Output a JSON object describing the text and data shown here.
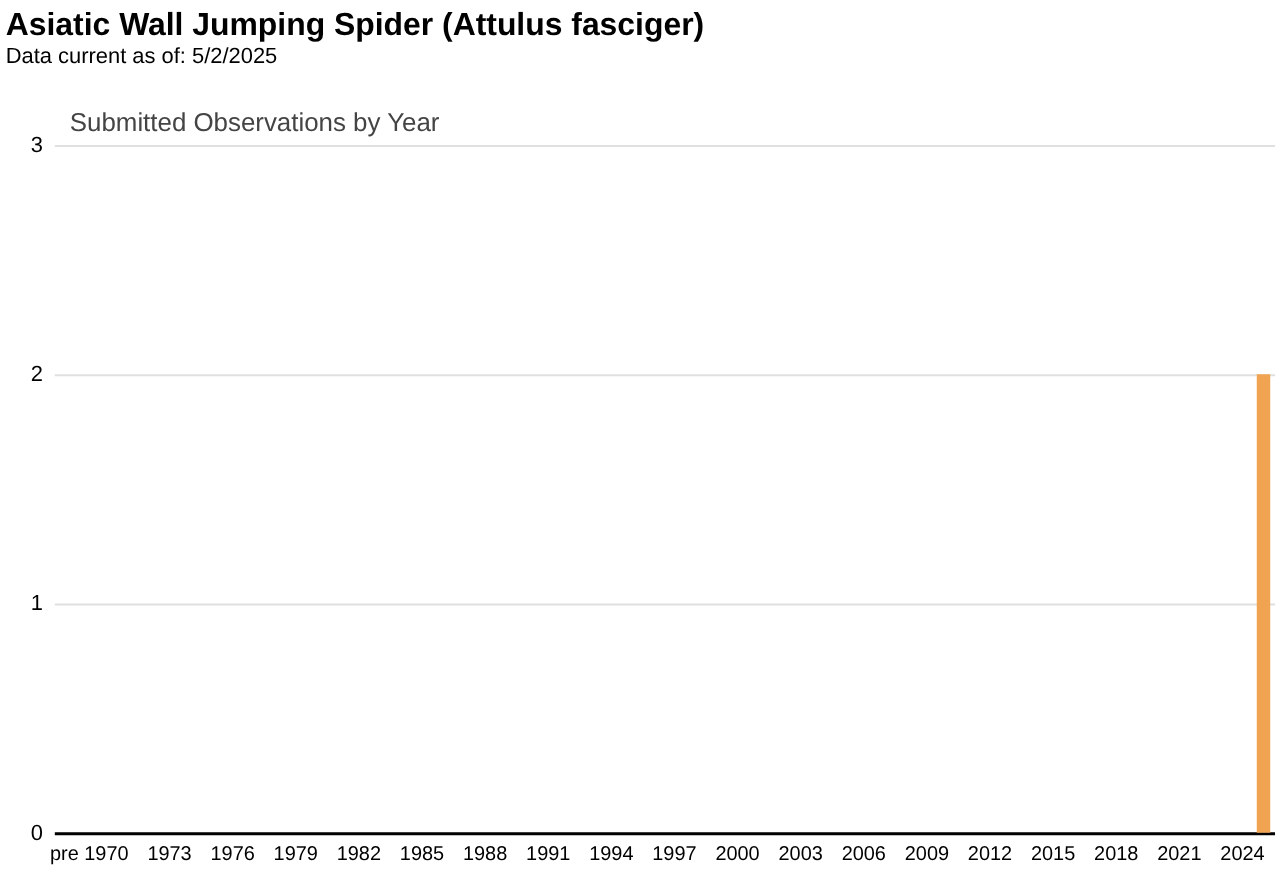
{
  "chart_data": {
    "type": "bar",
    "title": "Asiatic Wall Jumping Spider   (Attulus fasciger)",
    "subtitle": "Data current as of: 5/2/2025",
    "annotations": [
      "Submitted Observations by Year"
    ],
    "categories": [
      "pre",
      null,
      "1970",
      null,
      null,
      "1973",
      null,
      null,
      "1976",
      null,
      null,
      "1979",
      null,
      null,
      "1982",
      null,
      null,
      "1985",
      null,
      null,
      "1988",
      null,
      null,
      "1991",
      null,
      null,
      "1994",
      null,
      null,
      "1997",
      null,
      null,
      "2000",
      null,
      null,
      "2003",
      null,
      null,
      "2006",
      null,
      null,
      "2009",
      null,
      null,
      "2012",
      null,
      null,
      "2015",
      null,
      null,
      "2018",
      null,
      null,
      "2021",
      null,
      null,
      "2024",
      null
    ],
    "values": [
      0,
      0,
      0,
      0,
      0,
      0,
      0,
      0,
      0,
      0,
      0,
      0,
      0,
      0,
      0,
      0,
      0,
      0,
      0,
      0,
      0,
      0,
      0,
      0,
      0,
      0,
      0,
      0,
      0,
      0,
      0,
      0,
      0,
      0,
      0,
      0,
      0,
      0,
      0,
      0,
      0,
      0,
      0,
      0,
      0,
      0,
      0,
      0,
      0,
      0,
      0,
      0,
      0,
      0,
      0,
      0,
      0,
      2
    ],
    "color": "#f0a452",
    "ylim": [
      0,
      3
    ],
    "yticks": [
      0,
      1,
      2,
      3
    ],
    "grid": "y"
  }
}
